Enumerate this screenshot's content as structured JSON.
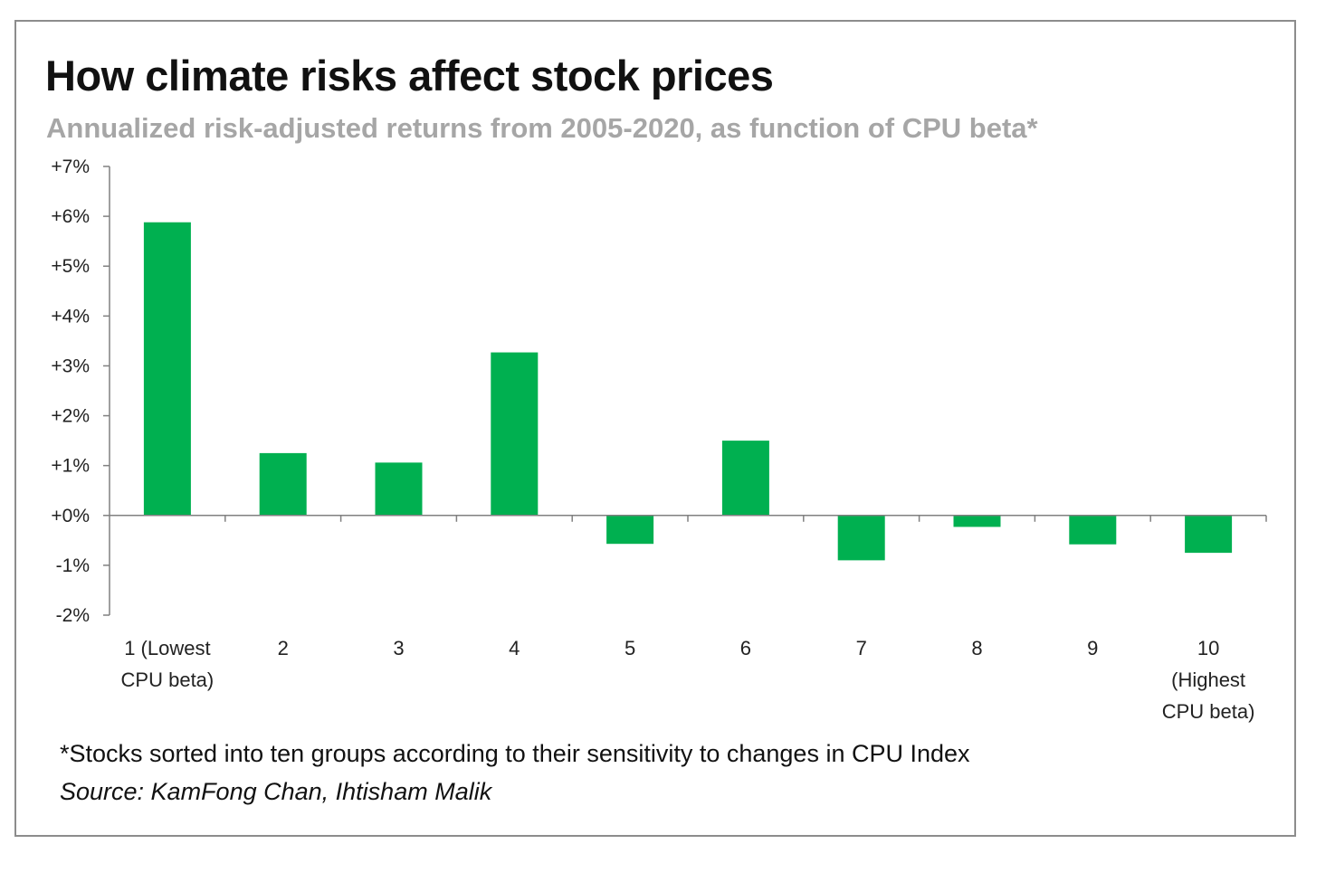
{
  "title": "How climate risks affect stock prices",
  "subtitle": "Annualized risk-adjusted returns from 2005-2020, as function of CPU beta*",
  "footnote": "*Stocks sorted into ten groups according to their sensitivity to changes in CPU Index",
  "source": "Source: KamFong Chan, Ihtisham Malik",
  "colors": {
    "bar": "#00b050",
    "axis": "#808080"
  },
  "chart_data": {
    "type": "bar",
    "categories": [
      [
        "1 (Lowest",
        "CPU beta)"
      ],
      [
        "2"
      ],
      [
        "3"
      ],
      [
        "4"
      ],
      [
        "5"
      ],
      [
        "6"
      ],
      [
        "7"
      ],
      [
        "8"
      ],
      [
        "9"
      ],
      [
        "10",
        "(Highest",
        "CPU beta)"
      ]
    ],
    "values": [
      5.88,
      1.25,
      1.06,
      3.27,
      -0.57,
      1.5,
      -0.9,
      -0.23,
      -0.58,
      -0.75
    ],
    "ylim": [
      -2,
      7
    ],
    "yticks": [
      7,
      6,
      5,
      4,
      3,
      2,
      1,
      0,
      -1,
      -2
    ],
    "ytick_labels": [
      "+7%",
      "+6%",
      "+5%",
      "+4%",
      "+3%",
      "+2%",
      "+1%",
      "+0%",
      "-1%",
      "-2%"
    ],
    "xlabel": "",
    "ylabel": "",
    "grid": false,
    "legend": "none"
  }
}
